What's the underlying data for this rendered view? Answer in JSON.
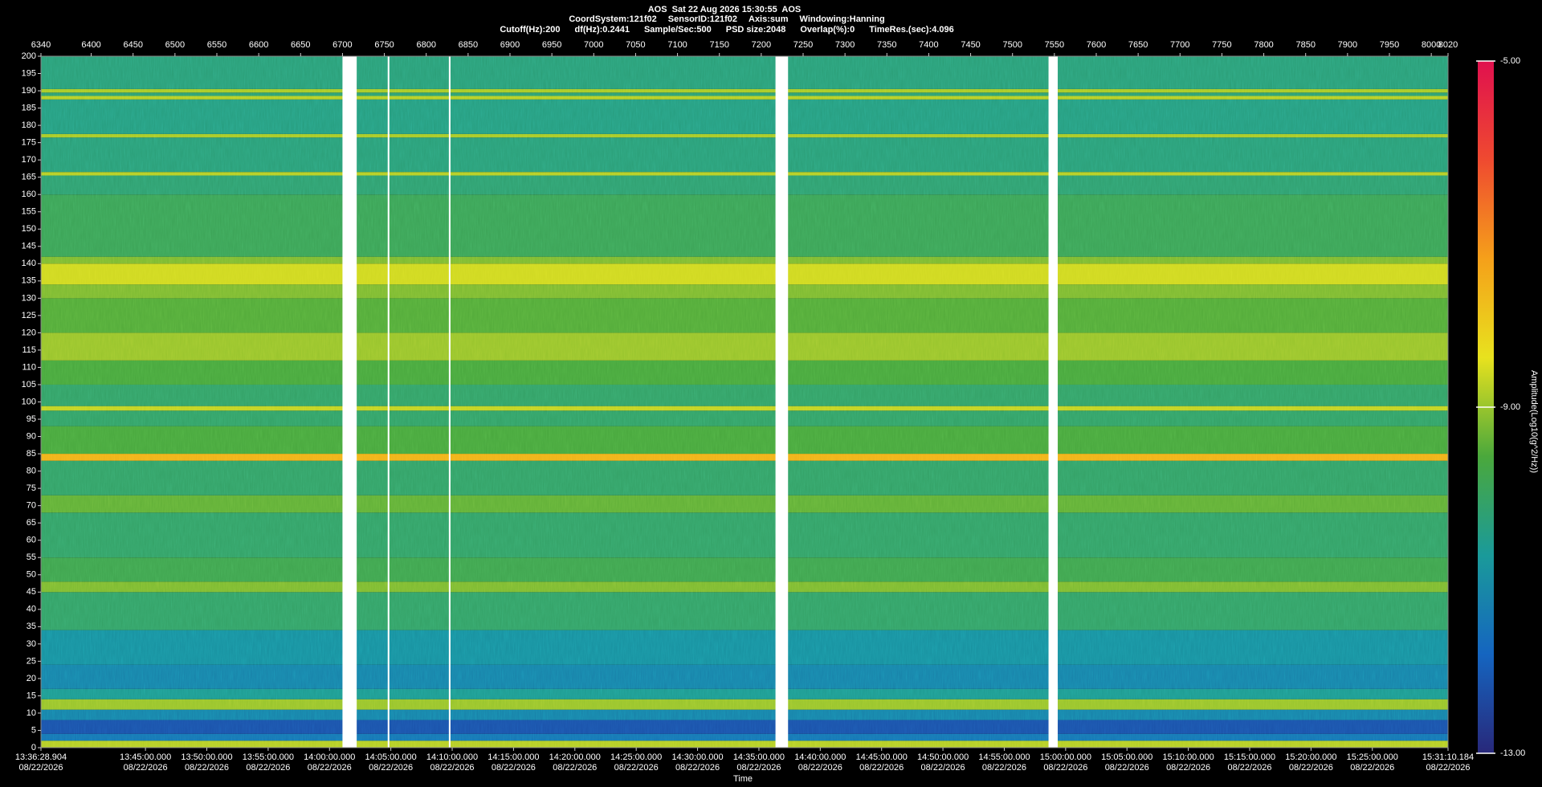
{
  "header": {
    "title": "AOS  Sat 22 Aug 2026 15:30:55  AOS",
    "line2": [
      "CoordSystem:121f02",
      "SensorID:121f02",
      "Axis:sum",
      "Windowing:Hanning"
    ],
    "line3": [
      "Cutoff(Hz):200",
      "df(Hz):0.2441",
      "Sample/Sec:500",
      "PSD size:2048",
      "Overlap(%):0",
      "TimeRes.(sec):4.096"
    ]
  },
  "chart_data": {
    "type": "spectrogram",
    "xlabel": "Time",
    "x2lim": [
      6340,
      8020
    ],
    "x2ticks": [
      6340,
      6400,
      6450,
      6500,
      6550,
      6600,
      6650,
      6700,
      6750,
      6800,
      6850,
      6900,
      6950,
      7000,
      7050,
      7100,
      7150,
      7200,
      7250,
      7300,
      7350,
      7400,
      7450,
      7500,
      7550,
      7600,
      7650,
      7700,
      7750,
      7800,
      7850,
      7900,
      7950,
      8000,
      8020
    ],
    "xticks": [
      {
        "time": "13:36:28.904",
        "date": "08/22/2026"
      },
      {
        "time": "13:45:00.000",
        "date": "08/22/2026"
      },
      {
        "time": "13:50:00.000",
        "date": "08/22/2026"
      },
      {
        "time": "13:55:00.000",
        "date": "08/22/2026"
      },
      {
        "time": "14:00:00.000",
        "date": "08/22/2026"
      },
      {
        "time": "14:05:00.000",
        "date": "08/22/2026"
      },
      {
        "time": "14:10:00.000",
        "date": "08/22/2026"
      },
      {
        "time": "14:15:00.000",
        "date": "08/22/2026"
      },
      {
        "time": "14:20:00.000",
        "date": "08/22/2026"
      },
      {
        "time": "14:25:00.000",
        "date": "08/22/2026"
      },
      {
        "time": "14:30:00.000",
        "date": "08/22/2026"
      },
      {
        "time": "14:35:00.000",
        "date": "08/22/2026"
      },
      {
        "time": "14:40:00.000",
        "date": "08/22/2026"
      },
      {
        "time": "14:45:00.000",
        "date": "08/22/2026"
      },
      {
        "time": "14:50:00.000",
        "date": "08/22/2026"
      },
      {
        "time": "14:55:00.000",
        "date": "08/22/2026"
      },
      {
        "time": "15:00:00.000",
        "date": "08/22/2026"
      },
      {
        "time": "15:05:00.000",
        "date": "08/22/2026"
      },
      {
        "time": "15:10:00.000",
        "date": "08/22/2026"
      },
      {
        "time": "15:15:00.000",
        "date": "08/22/2026"
      },
      {
        "time": "15:20:00.000",
        "date": "08/22/2026"
      },
      {
        "time": "15:25:00.000",
        "date": "08/22/2026"
      },
      {
        "time": "15:31:10.184",
        "date": "08/22/2026"
      }
    ],
    "ylim": [
      0,
      200
    ],
    "yticks": [
      0,
      5,
      10,
      15,
      20,
      25,
      30,
      35,
      40,
      45,
      50,
      55,
      60,
      65,
      70,
      75,
      80,
      85,
      90,
      95,
      100,
      105,
      110,
      115,
      120,
      125,
      130,
      135,
      140,
      145,
      150,
      155,
      160,
      165,
      170,
      175,
      180,
      185,
      190,
      195,
      200
    ],
    "zlabel": "Amplitude(Log10(g^2/Hz))",
    "zlim": [
      -13,
      -5
    ],
    "zticks": [
      {
        "value": -13,
        "label": "-13.00"
      },
      {
        "value": -9,
        "label": "-9.00"
      },
      {
        "value": -5,
        "label": "-5.00"
      }
    ],
    "colormap": [
      "#28287a",
      "#1565c0",
      "#1a9a9a",
      "#4aa83c",
      "#e8e21e",
      "#f5a01a",
      "#ef4a30",
      "#e0104e"
    ],
    "bands": [
      {
        "from": 0,
        "to": 2,
        "level": -8.8
      },
      {
        "from": 2,
        "to": 4,
        "level": -11.5
      },
      {
        "from": 4,
        "to": 8,
        "level": -12.2
      },
      {
        "from": 8,
        "to": 11,
        "level": -11.2
      },
      {
        "from": 11,
        "to": 14,
        "level": -9.0
      },
      {
        "from": 14,
        "to": 17,
        "level": -10.6
      },
      {
        "from": 17,
        "to": 24,
        "level": -11.2
      },
      {
        "from": 24,
        "to": 34,
        "level": -10.9
      },
      {
        "from": 34,
        "to": 45,
        "level": -10.1
      },
      {
        "from": 45,
        "to": 48,
        "level": -9.2
      },
      {
        "from": 48,
        "to": 55,
        "level": -9.8
      },
      {
        "from": 55,
        "to": 68,
        "level": -10.1
      },
      {
        "from": 68,
        "to": 73,
        "level": -9.4
      },
      {
        "from": 73,
        "to": 83,
        "level": -10.1
      },
      {
        "from": 83,
        "to": 85,
        "level": -7.6
      },
      {
        "from": 85,
        "to": 93,
        "level": -9.6
      },
      {
        "from": 93,
        "to": 97.5,
        "level": -10.1
      },
      {
        "from": 97.5,
        "to": 98.8,
        "level": -8.7
      },
      {
        "from": 98.8,
        "to": 105,
        "level": -10.1
      },
      {
        "from": 105,
        "to": 112,
        "level": -9.6
      },
      {
        "from": 112,
        "to": 120,
        "level": -9.0
      },
      {
        "from": 120,
        "to": 130,
        "level": -9.5
      },
      {
        "from": 130,
        "to": 134,
        "level": -9.2
      },
      {
        "from": 134,
        "to": 140,
        "level": -8.6
      },
      {
        "from": 140,
        "to": 142,
        "level": -9.2
      },
      {
        "from": 142,
        "to": 160,
        "level": -9.9
      },
      {
        "from": 160,
        "to": 165.5,
        "level": -10.2
      },
      {
        "from": 165.5,
        "to": 166.5,
        "level": -8.8
      },
      {
        "from": 166.5,
        "to": 176.5,
        "level": -10.3
      },
      {
        "from": 176.5,
        "to": 177.5,
        "level": -8.9
      },
      {
        "from": 177.5,
        "to": 187.5,
        "level": -10.4
      },
      {
        "from": 187.5,
        "to": 188.5,
        "level": -8.8
      },
      {
        "from": 188.5,
        "to": 189.5,
        "level": -10.2
      },
      {
        "from": 189.5,
        "to": 190.5,
        "level": -8.9
      },
      {
        "from": 190.5,
        "to": 200,
        "level": -10.3
      }
    ],
    "gaps": [
      [
        6700,
        6717
      ],
      [
        6754,
        6756
      ],
      [
        6827,
        6829
      ],
      [
        7217,
        7232
      ],
      [
        7543,
        7554
      ]
    ]
  }
}
